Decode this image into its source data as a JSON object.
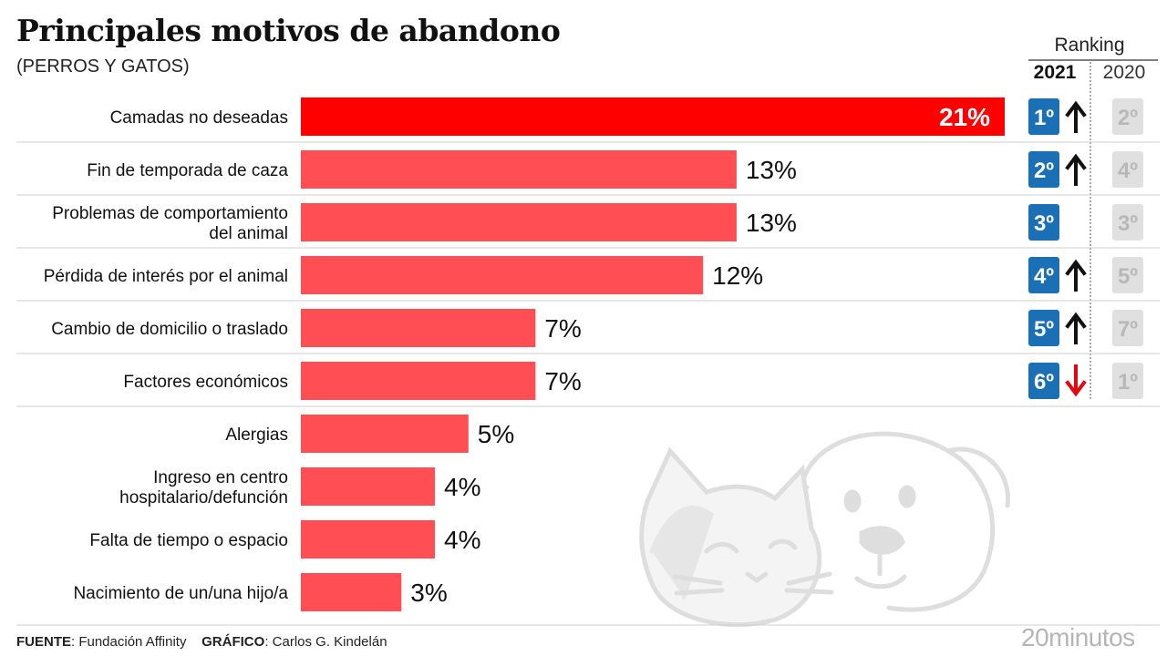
{
  "header": {
    "title": "Principales motivos de abandono",
    "subtitle": "(PERROS Y GATOS)",
    "ranking_label": "Ranking",
    "year_current": "2021",
    "year_previous": "2020"
  },
  "chart_data": {
    "type": "bar",
    "orientation": "horizontal",
    "title": "Principales motivos de abandono",
    "subtitle": "(PERROS Y GATOS)",
    "categories": [
      "Camadas no deseadas",
      "Fin de temporada de caza",
      "Problemas de comportamiento del animal",
      "Pérdida de interés por el animal",
      "Cambio de domicilio o traslado",
      "Factores económicos",
      "Alergias",
      "Ingreso en centro hospitalario/defunción",
      "Falta de tiempo o espacio",
      "Nacimiento de un/una hijo/a"
    ],
    "category_lines": [
      [
        "Camadas no deseadas"
      ],
      [
        "Fin de temporada de caza"
      ],
      [
        "Problemas de comportamiento",
        "del animal"
      ],
      [
        "Pérdida de interés por el animal"
      ],
      [
        "Cambio de domicilio o traslado"
      ],
      [
        "Factores económicos"
      ],
      [
        "Alergias"
      ],
      [
        "Ingreso en centro",
        "hospitalario/defunción"
      ],
      [
        "Falta de tiempo o espacio"
      ],
      [
        "Nacimiento de un/una hijo/a"
      ]
    ],
    "values": [
      21,
      13,
      13,
      12,
      7,
      7,
      5,
      4,
      4,
      3
    ],
    "value_labels": [
      "21%",
      "13%",
      "13%",
      "12%",
      "7%",
      "7%",
      "5%",
      "4%",
      "4%",
      "3%"
    ],
    "xlim": [
      0,
      21
    ],
    "highlight_color": "#ff0000",
    "bar_color": "#ff4f55",
    "ranking": [
      {
        "rank_2021": "1º",
        "trend": "up",
        "rank_2020": "2º"
      },
      {
        "rank_2021": "2º",
        "trend": "up",
        "rank_2020": "4º"
      },
      {
        "rank_2021": "3º",
        "trend": "none",
        "rank_2020": "3º"
      },
      {
        "rank_2021": "4º",
        "trend": "up",
        "rank_2020": "5º"
      },
      {
        "rank_2021": "5º",
        "trend": "up",
        "rank_2020": "7º"
      },
      {
        "rank_2021": "6º",
        "trend": "down",
        "rank_2020": "1º"
      }
    ],
    "rank_2021_color": "#1a6fb5",
    "rank_2020_color": "#e0e0e0",
    "trend_up_color": "#111111",
    "trend_down_color": "#e30613",
    "grid": false
  },
  "footer": {
    "source_label": "FUENTE",
    "source_value": ": Fundación Affinity",
    "graphic_label": "GRÁFICO",
    "graphic_value": ": Carlos G. Kindelán"
  },
  "brand": "20minutos",
  "decoration_icon": "cat-and-dog-illustration"
}
